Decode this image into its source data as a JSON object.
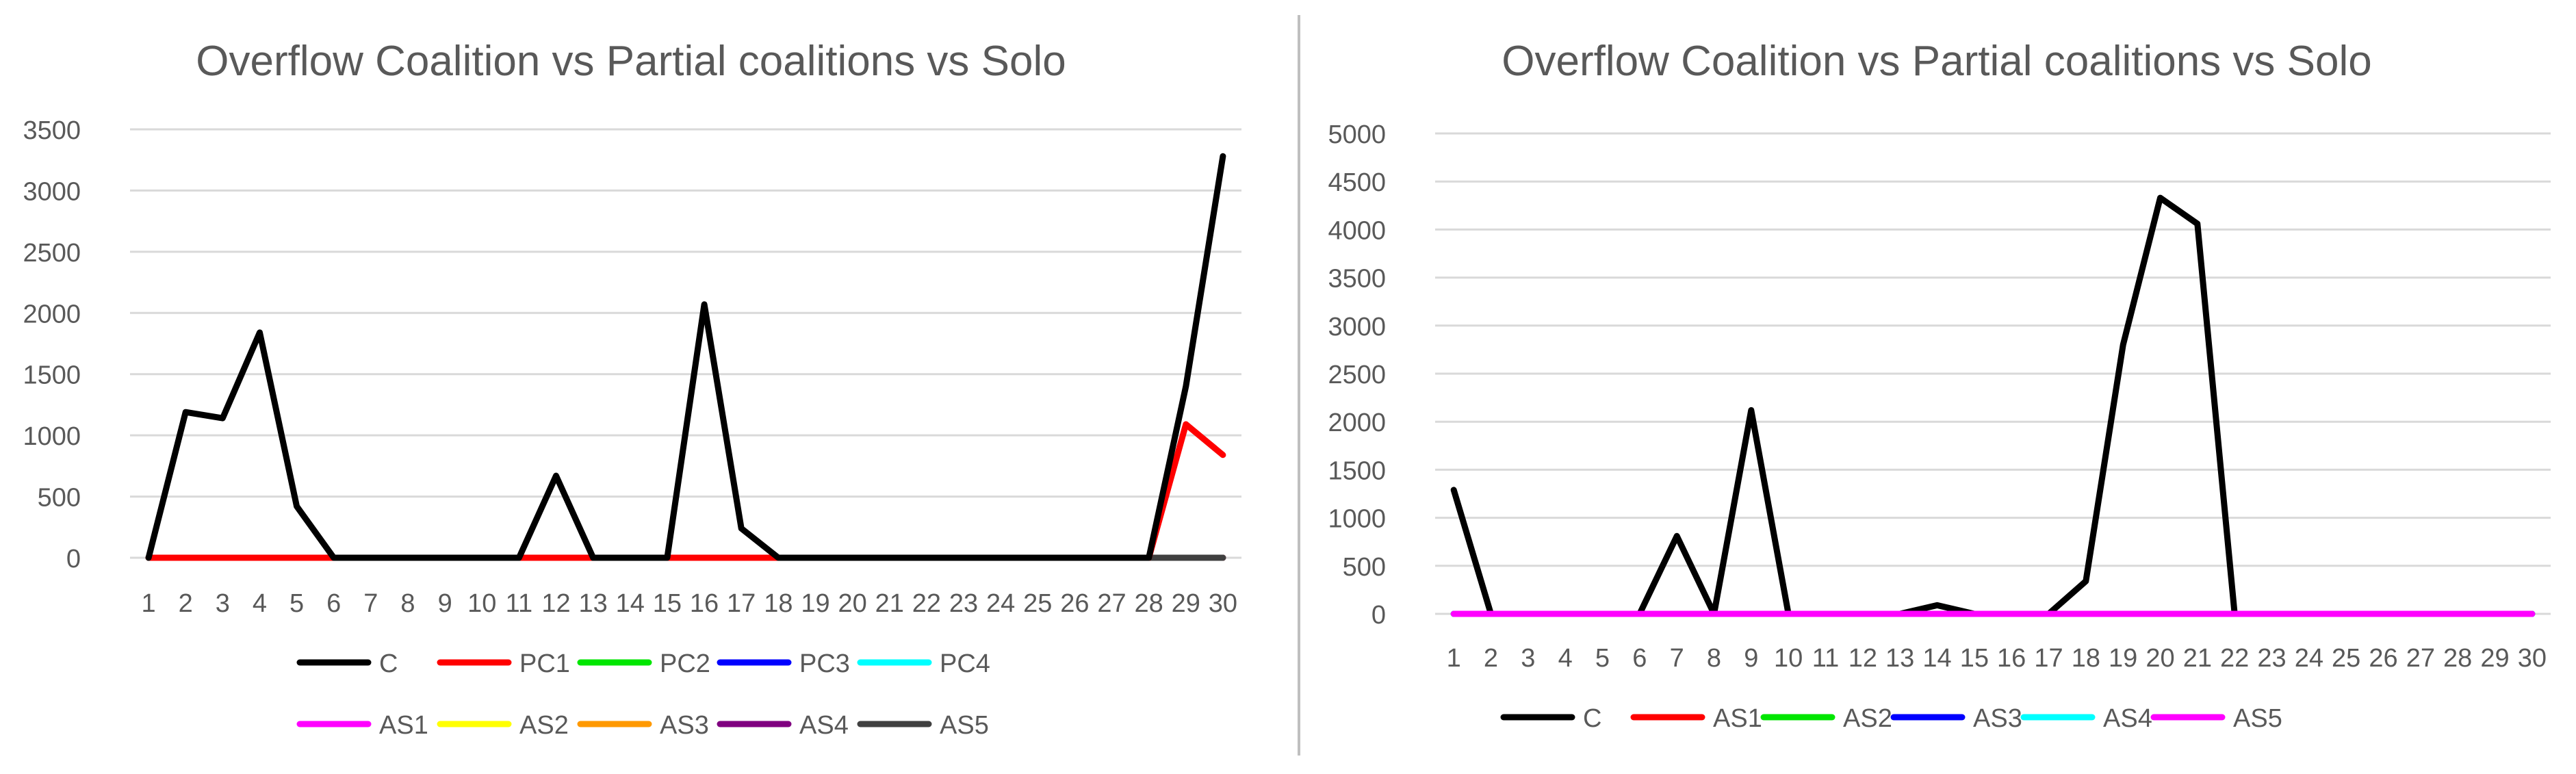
{
  "chart_data": [
    {
      "type": "line",
      "title": "Overflow Coalition vs Partial coalitions vs Solo",
      "xlabel": "",
      "ylabel": "",
      "categories": [
        "1",
        "2",
        "3",
        "4",
        "5",
        "6",
        "7",
        "8",
        "9",
        "10",
        "11",
        "12",
        "13",
        "14",
        "15",
        "16",
        "17",
        "18",
        "19",
        "20",
        "21",
        "22",
        "23",
        "24",
        "25",
        "26",
        "27",
        "28",
        "29",
        "30"
      ],
      "ylim": [
        0,
        3500
      ],
      "yticks": [
        0,
        500,
        1000,
        1500,
        2000,
        2500,
        3000,
        3500
      ],
      "grid": true,
      "legend_position": "bottom",
      "series": [
        {
          "name": "C",
          "color": "#000000",
          "values": [
            0,
            1190,
            1140,
            1840,
            420,
            0,
            0,
            0,
            0,
            0,
            0,
            670,
            0,
            0,
            0,
            2070,
            240,
            0,
            0,
            0,
            0,
            0,
            0,
            0,
            0,
            0,
            0,
            0,
            1400,
            3280
          ]
        },
        {
          "name": "PC1",
          "color": "#ff0000",
          "values": [
            0,
            0,
            0,
            0,
            0,
            0,
            0,
            0,
            0,
            0,
            0,
            0,
            0,
            0,
            0,
            0,
            0,
            0,
            0,
            0,
            0,
            0,
            0,
            0,
            0,
            0,
            0,
            0,
            1090,
            840
          ]
        },
        {
          "name": "PC2",
          "color": "#00e600",
          "values": [
            0,
            0,
            0,
            0,
            0,
            0,
            0,
            0,
            0,
            0,
            0,
            0,
            0,
            0,
            0,
            0,
            0,
            0,
            0,
            0,
            0,
            0,
            0,
            0,
            0,
            0,
            0,
            0,
            0,
            0
          ]
        },
        {
          "name": "PC3",
          "color": "#0000ff",
          "values": [
            0,
            0,
            0,
            0,
            0,
            0,
            0,
            0,
            0,
            0,
            0,
            0,
            0,
            0,
            0,
            0,
            0,
            0,
            0,
            0,
            0,
            0,
            0,
            0,
            0,
            0,
            0,
            0,
            0,
            0
          ]
        },
        {
          "name": "PC4",
          "color": "#00ffff",
          "values": [
            0,
            0,
            0,
            0,
            0,
            0,
            0,
            0,
            0,
            0,
            0,
            0,
            0,
            0,
            0,
            0,
            0,
            0,
            0,
            0,
            0,
            0,
            0,
            0,
            0,
            0,
            0,
            0,
            0,
            0
          ]
        },
        {
          "name": "AS1",
          "color": "#ff00ff",
          "values": [
            0,
            0,
            0,
            0,
            0,
            0,
            0,
            0,
            0,
            0,
            0,
            0,
            0,
            0,
            0,
            0,
            0,
            0,
            0,
            0,
            0,
            0,
            0,
            0,
            0,
            0,
            0,
            0,
            0,
            0
          ]
        },
        {
          "name": "AS2",
          "color": "#ffff00",
          "values": [
            0,
            0,
            0,
            0,
            0,
            0,
            0,
            0,
            0,
            0,
            0,
            0,
            0,
            0,
            0,
            0,
            0,
            0,
            0,
            0,
            0,
            0,
            0,
            0,
            0,
            0,
            0,
            0,
            0,
            0
          ]
        },
        {
          "name": "AS3",
          "color": "#ff9900",
          "values": [
            0,
            0,
            0,
            0,
            0,
            0,
            0,
            0,
            0,
            0,
            0,
            0,
            0,
            0,
            0,
            0,
            0,
            0,
            0,
            0,
            0,
            0,
            0,
            0,
            0,
            0,
            0,
            0,
            0,
            0
          ]
        },
        {
          "name": "AS4",
          "color": "#800080",
          "values": [
            0,
            0,
            0,
            0,
            0,
            0,
            0,
            0,
            0,
            0,
            0,
            0,
            0,
            0,
            0,
            0,
            0,
            0,
            0,
            0,
            0,
            0,
            0,
            0,
            0,
            0,
            0,
            0,
            0,
            0
          ]
        },
        {
          "name": "AS5",
          "color": "#404040",
          "values": [
            0,
            0,
            0,
            0,
            0,
            0,
            0,
            0,
            0,
            0,
            0,
            0,
            0,
            0,
            0,
            0,
            0,
            0,
            0,
            0,
            0,
            0,
            0,
            0,
            0,
            0,
            0,
            0,
            0,
            0
          ]
        }
      ],
      "draw_order": [
        "PC2",
        "PC3",
        "PC4",
        "AS1",
        "AS2",
        "AS3",
        "AS4",
        "AS5",
        "PC1",
        "C"
      ]
    },
    {
      "type": "line",
      "title": "Overflow Coalition vs Partial coalitions vs Solo",
      "xlabel": "",
      "ylabel": "",
      "categories": [
        "1",
        "2",
        "3",
        "4",
        "5",
        "6",
        "7",
        "8",
        "9",
        "10",
        "11",
        "12",
        "13",
        "14",
        "15",
        "16",
        "17",
        "18",
        "19",
        "20",
        "21",
        "22",
        "23",
        "24",
        "25",
        "26",
        "27",
        "28",
        "29",
        "30"
      ],
      "ylim": [
        0,
        5000
      ],
      "yticks": [
        0,
        500,
        1000,
        1500,
        2000,
        2500,
        3000,
        3500,
        4000,
        4500,
        5000
      ],
      "grid": true,
      "legend_position": "bottom",
      "series": [
        {
          "name": "C",
          "color": "#000000",
          "values": [
            1290,
            0,
            0,
            0,
            0,
            0,
            810,
            0,
            2120,
            0,
            0,
            0,
            0,
            90,
            0,
            0,
            0,
            340,
            2800,
            4330,
            4060,
            0,
            0,
            0,
            0,
            0,
            0,
            0,
            0,
            0
          ]
        },
        {
          "name": "AS1",
          "color": "#ff0000",
          "values": [
            0,
            0,
            0,
            0,
            0,
            0,
            0,
            0,
            0,
            0,
            0,
            0,
            0,
            0,
            0,
            0,
            0,
            0,
            0,
            0,
            0,
            0,
            0,
            0,
            0,
            0,
            0,
            0,
            0,
            0
          ]
        },
        {
          "name": "AS2",
          "color": "#00e600",
          "values": [
            0,
            0,
            0,
            0,
            0,
            0,
            0,
            0,
            0,
            0,
            0,
            0,
            0,
            0,
            0,
            0,
            0,
            0,
            0,
            0,
            0,
            0,
            0,
            0,
            0,
            0,
            0,
            0,
            0,
            0
          ]
        },
        {
          "name": "AS3",
          "color": "#0000ff",
          "values": [
            0,
            0,
            0,
            0,
            0,
            0,
            0,
            0,
            0,
            0,
            0,
            0,
            0,
            0,
            0,
            0,
            0,
            0,
            0,
            0,
            0,
            0,
            0,
            0,
            0,
            0,
            0,
            0,
            0,
            0
          ]
        },
        {
          "name": "AS4",
          "color": "#00ffff",
          "values": [
            0,
            0,
            0,
            0,
            0,
            0,
            0,
            0,
            0,
            0,
            0,
            0,
            0,
            0,
            0,
            0,
            0,
            0,
            0,
            0,
            0,
            0,
            0,
            0,
            0,
            0,
            0,
            0,
            0,
            0
          ]
        },
        {
          "name": "AS5",
          "color": "#ff00ff",
          "values": [
            0,
            0,
            0,
            0,
            0,
            0,
            0,
            0,
            0,
            0,
            0,
            0,
            0,
            0,
            0,
            0,
            0,
            0,
            0,
            0,
            0,
            0,
            0,
            0,
            0,
            0,
            0,
            0,
            0,
            0
          ]
        }
      ],
      "draw_order": [
        "C",
        "AS1",
        "AS2",
        "AS3",
        "AS4",
        "AS5"
      ]
    }
  ],
  "colors": {
    "gridline": "#d9d9d9",
    "text": "#595959",
    "panel_divider": "#bfbfbf"
  }
}
